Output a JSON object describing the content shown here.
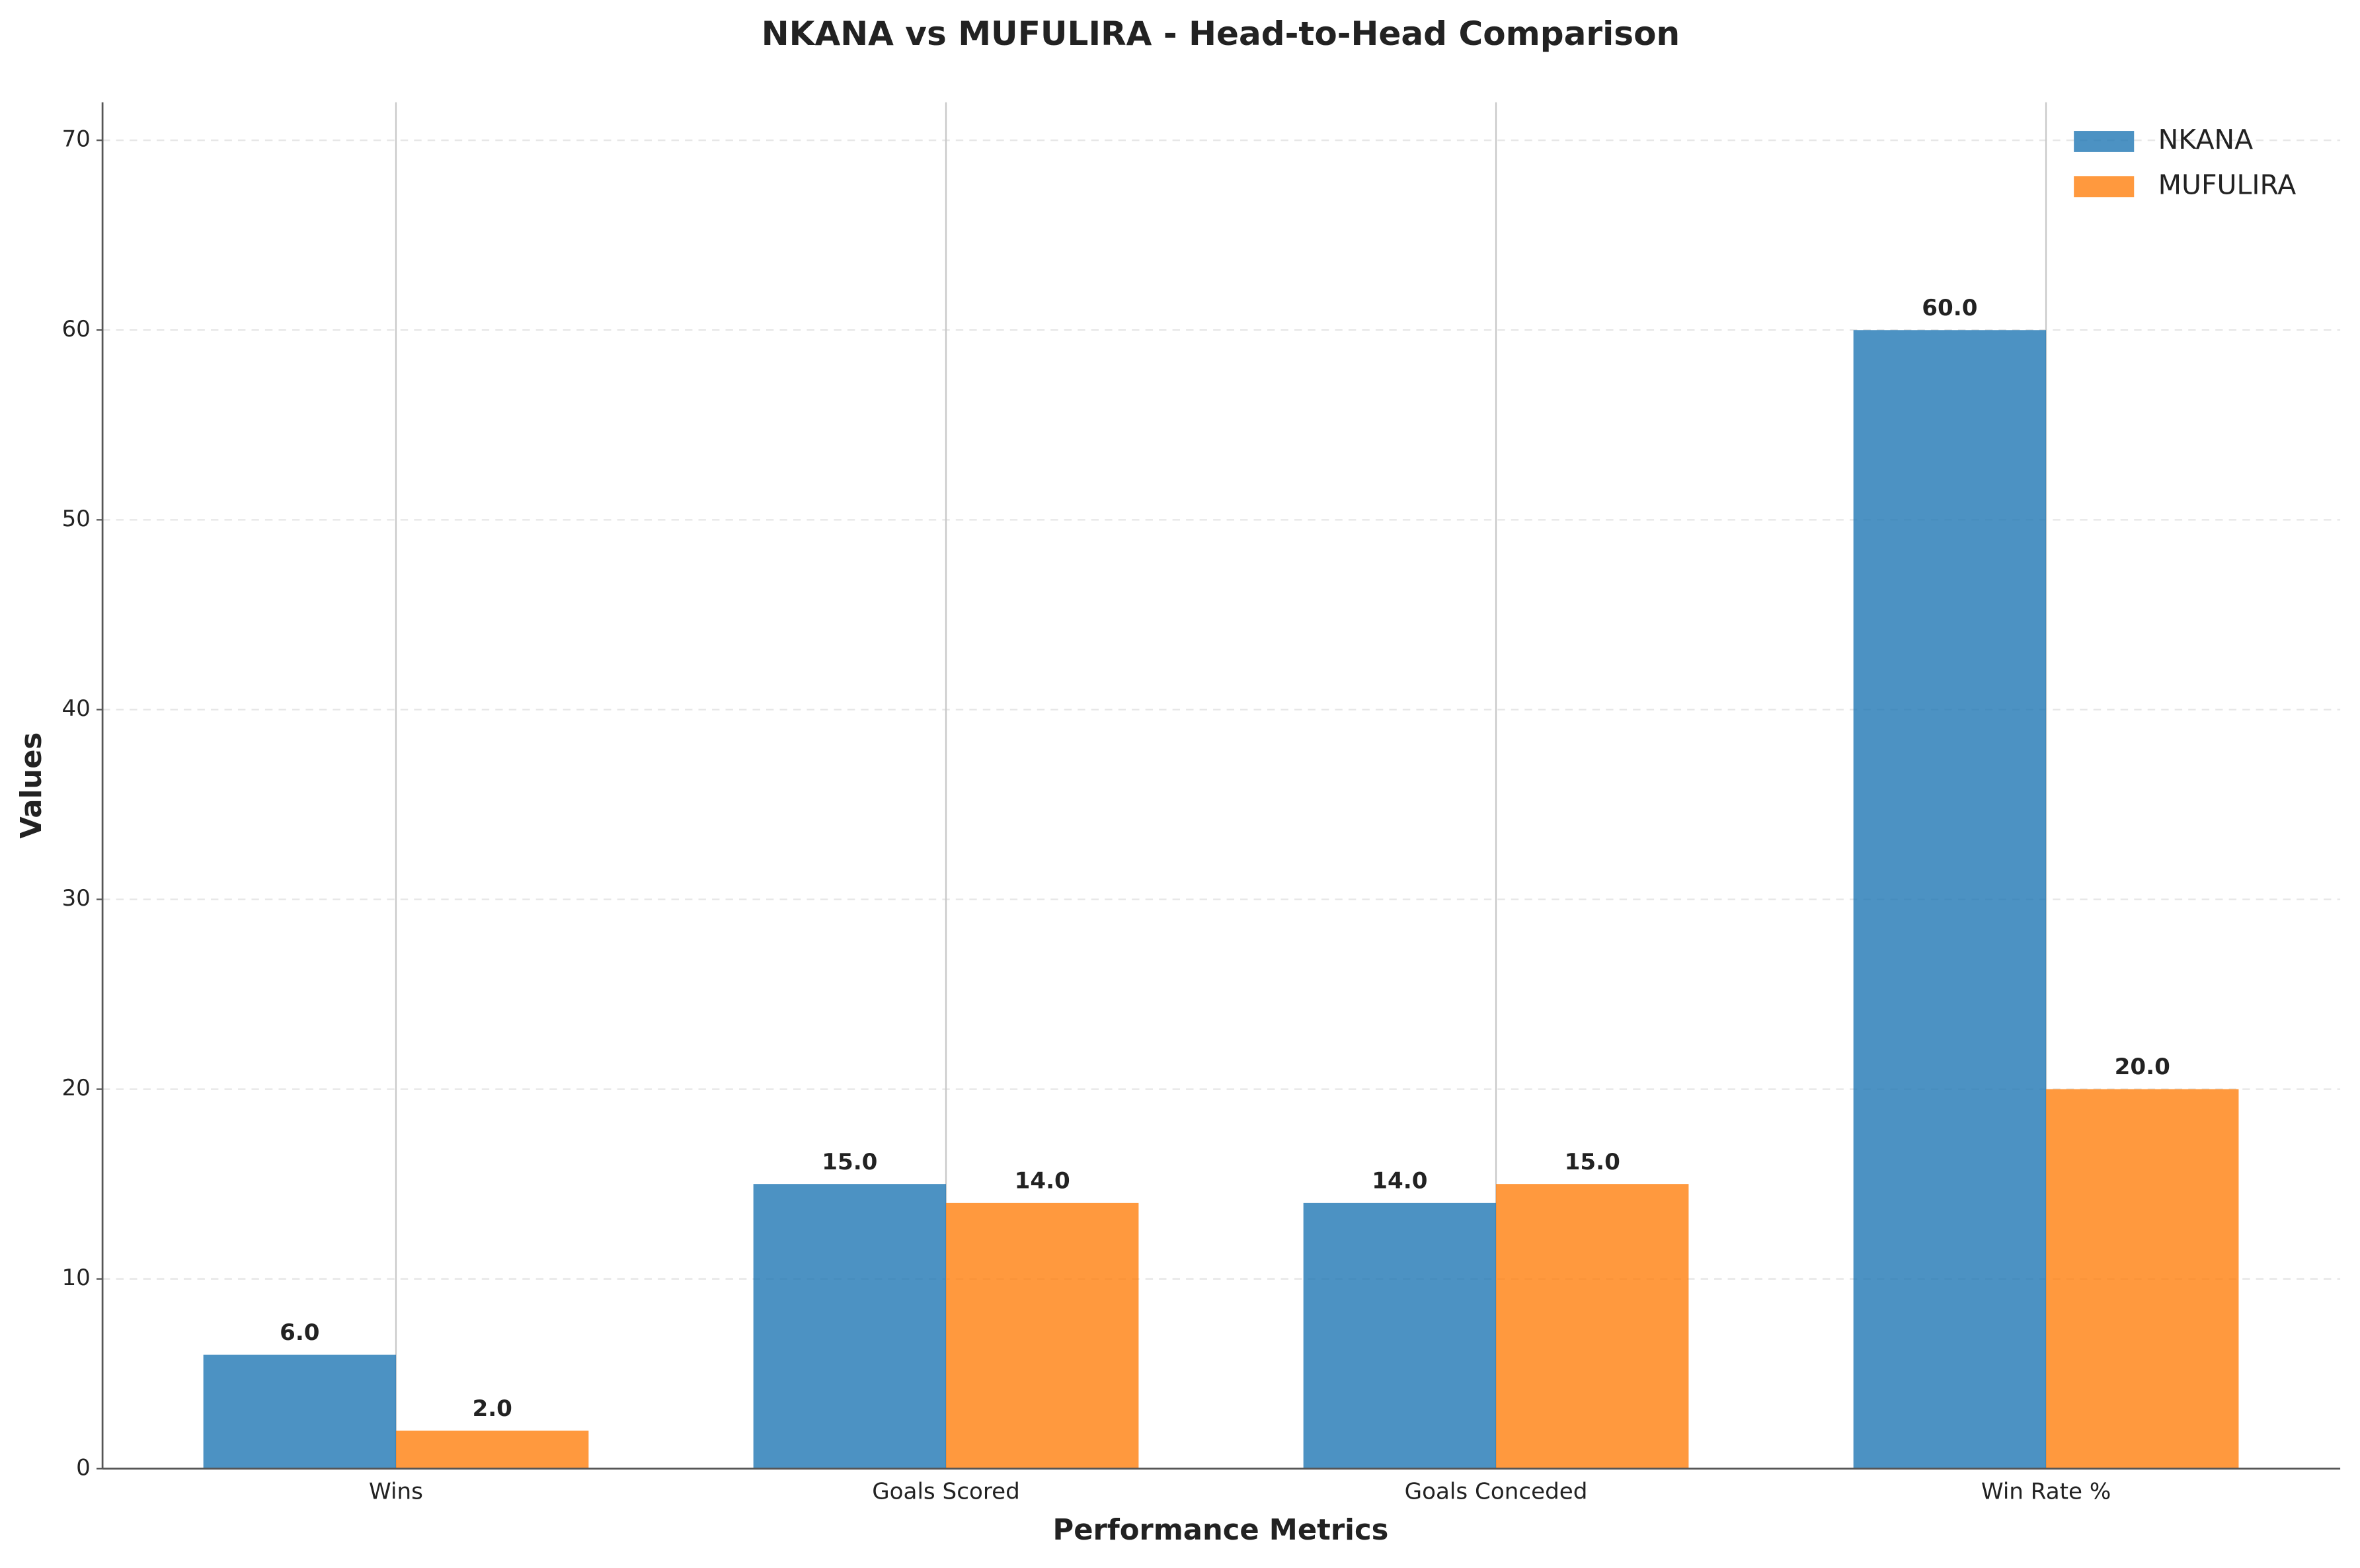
{
  "chart_data": {
    "type": "bar",
    "title": "NKANA vs MUFULIRA - Head-to-Head Comparison",
    "x_label": "Performance Metrics",
    "y_label": "Values",
    "categories": [
      "Wins",
      "Goals Scored",
      "Goals Conceded",
      "Win Rate %"
    ],
    "series": [
      {
        "name": "NKANA",
        "color": "#1f77b4",
        "values": [
          6,
          15,
          14,
          60
        ],
        "value_labels": [
          "6.0",
          "15.0",
          "14.0",
          "60.0"
        ]
      },
      {
        "name": "MUFULIRA",
        "color": "#ff7f0e",
        "values": [
          2,
          14,
          15,
          20
        ],
        "value_labels": [
          "2.0",
          "14.0",
          "15.0",
          "20.0"
        ]
      }
    ],
    "ylim": [
      0,
      72
    ],
    "yticks": [
      0,
      10,
      20,
      30,
      40,
      50,
      60,
      70
    ],
    "grid": true,
    "legend": "upper right"
  }
}
